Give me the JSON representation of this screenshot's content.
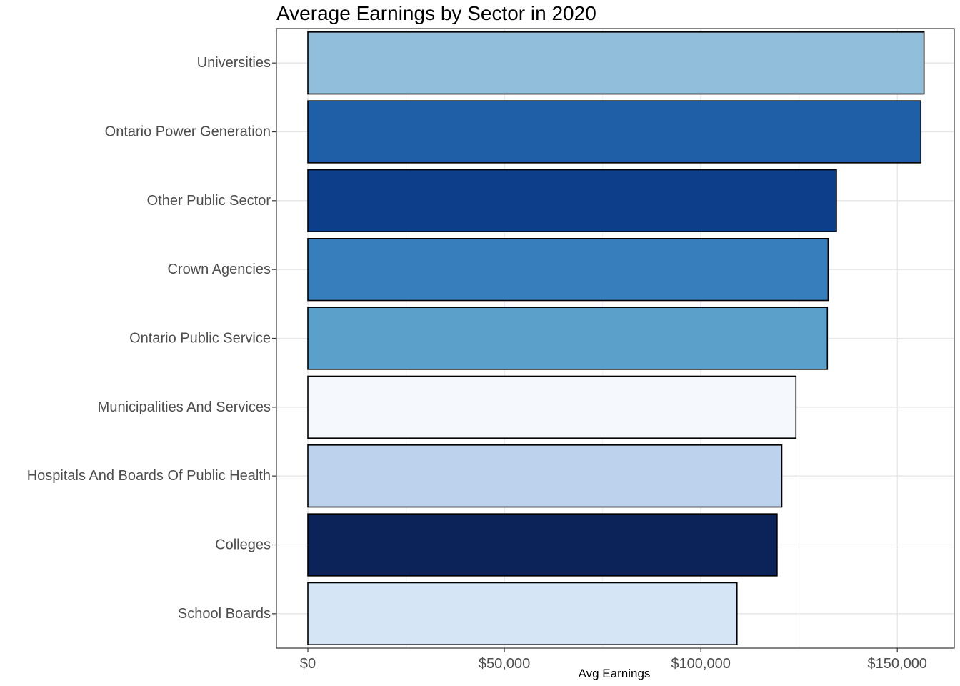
{
  "chart_data": {
    "type": "bar",
    "orientation": "horizontal",
    "title": "Average Earnings by Sector in 2020",
    "xlabel": "Avg Earnings",
    "ylabel": "",
    "xlim": [
      -8000,
      164500
    ],
    "x_ticks": [
      0,
      50000,
      100000,
      150000
    ],
    "x_tick_labels": [
      "$0",
      "$50,000",
      "$100,000",
      "$150,000"
    ],
    "grid": true,
    "legend": "none",
    "categories": [
      "Universities",
      "Ontario Power Generation",
      "Other Public Sector",
      "Crown Agencies",
      "Ontario Public Service",
      "Municipalities And Services",
      "Hospitals And Boards Of Public Health",
      "Colleges",
      "School Boards"
    ],
    "values": [
      156800,
      156000,
      134500,
      132400,
      132200,
      124200,
      120600,
      119400,
      109200
    ],
    "colors": [
      "#91bfdb",
      "#1f5fa8",
      "#0c3e8a",
      "#377fbc",
      "#5b9fcb",
      "#f5f9fe",
      "#bdd3ed",
      "#0c2359",
      "#d5e5f5"
    ]
  }
}
